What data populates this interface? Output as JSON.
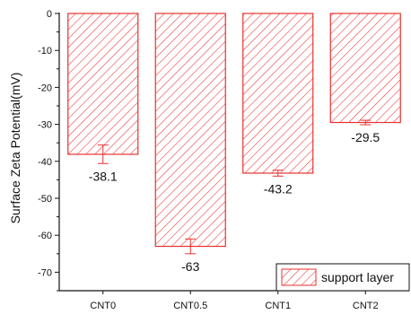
{
  "chart_data": {
    "type": "bar",
    "title": "",
    "xlabel": "",
    "ylabel": "Surface Zeta Potential(mV)",
    "categories": [
      "CNT0",
      "CNT0.5",
      "CNT1",
      "CNT2"
    ],
    "series": [
      {
        "name": "support layer",
        "values": [
          -38.1,
          -63,
          -43.2,
          -29.5
        ],
        "errors": [
          2.5,
          2.0,
          0.8,
          0.6
        ],
        "labels": [
          "-38.1",
          "-63",
          "-43.2",
          "-29.5"
        ]
      }
    ],
    "ylim": [
      -75,
      0
    ],
    "yticks": [
      0,
      -10,
      -20,
      -30,
      -40,
      -50,
      -60,
      -70
    ],
    "grid": false,
    "legend": "bottom-right",
    "colors": {
      "bar_edge": "#e8312f",
      "hatch": "#e8312f",
      "axis": "#111111"
    }
  }
}
